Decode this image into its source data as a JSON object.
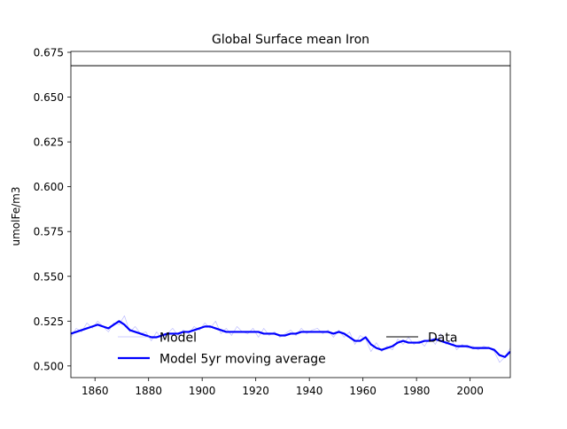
{
  "chart_data": {
    "type": "line",
    "title": "Global Surface mean Iron",
    "xlabel": "",
    "ylabel": "umolFe/m3",
    "xlim": [
      1851,
      2015
    ],
    "ylim": [
      0.4935,
      0.6755
    ],
    "xticks": [
      1860,
      1880,
      1900,
      1920,
      1940,
      1960,
      1980,
      2000
    ],
    "yticks": [
      0.5,
      0.525,
      0.55,
      0.575,
      0.6,
      0.625,
      0.65,
      0.675
    ],
    "ytick_labels": [
      "0.500",
      "0.525",
      "0.550",
      "0.575",
      "0.600",
      "0.625",
      "0.650",
      "0.675"
    ],
    "grid": false,
    "legend": [
      {
        "label": "Model",
        "placement": "lower-left",
        "color": "#9999ff"
      },
      {
        "label": "Model 5yr moving average",
        "placement": "lower-left",
        "color": "#0000ff"
      },
      {
        "label": "Data",
        "placement": "lower-right",
        "color": "#000000"
      }
    ],
    "series": [
      {
        "name": "Model",
        "color": "#9999ff",
        "x": [
          1851,
          1853,
          1855,
          1857,
          1859,
          1861,
          1863,
          1865,
          1867,
          1869,
          1871,
          1873,
          1875,
          1877,
          1879,
          1881,
          1883,
          1885,
          1887,
          1889,
          1891,
          1893,
          1895,
          1897,
          1899,
          1901,
          1903,
          1905,
          1907,
          1909,
          1911,
          1913,
          1915,
          1917,
          1919,
          1921,
          1923,
          1925,
          1927,
          1929,
          1931,
          1933,
          1935,
          1937,
          1939,
          1941,
          1943,
          1945,
          1947,
          1949,
          1951,
          1953,
          1955,
          1957,
          1959,
          1961,
          1963,
          1965,
          1967,
          1969,
          1971,
          1973,
          1975,
          1977,
          1979,
          1981,
          1983,
          1985,
          1987,
          1989,
          1991,
          1993,
          1995,
          1997,
          1999,
          2001,
          2003,
          2005,
          2007,
          2009,
          2011,
          2013,
          2015
        ],
        "values": [
          0.516,
          0.521,
          0.519,
          0.524,
          0.521,
          0.525,
          0.522,
          0.519,
          0.524,
          0.523,
          0.528,
          0.519,
          0.522,
          0.518,
          0.519,
          0.514,
          0.519,
          0.515,
          0.518,
          0.521,
          0.517,
          0.52,
          0.518,
          0.522,
          0.52,
          0.524,
          0.521,
          0.525,
          0.518,
          0.521,
          0.517,
          0.522,
          0.519,
          0.518,
          0.521,
          0.516,
          0.521,
          0.517,
          0.519,
          0.516,
          0.518,
          0.52,
          0.517,
          0.521,
          0.518,
          0.52,
          0.521,
          0.518,
          0.52,
          0.516,
          0.52,
          0.516,
          0.519,
          0.512,
          0.517,
          0.515,
          0.508,
          0.513,
          0.508,
          0.511,
          0.509,
          0.515,
          0.512,
          0.516,
          0.512,
          0.514,
          0.511,
          0.516,
          0.512,
          0.518,
          0.512,
          0.515,
          0.509,
          0.512,
          0.51,
          0.511,
          0.509,
          0.511,
          0.51,
          0.508,
          0.502,
          0.505,
          0.51
        ]
      },
      {
        "name": "Model 5yr moving average",
        "color": "#0000ff",
        "x": [
          1851,
          1853,
          1855,
          1857,
          1859,
          1861,
          1863,
          1865,
          1867,
          1869,
          1871,
          1873,
          1875,
          1877,
          1879,
          1881,
          1883,
          1885,
          1887,
          1889,
          1891,
          1893,
          1895,
          1897,
          1899,
          1901,
          1903,
          1905,
          1907,
          1909,
          1911,
          1913,
          1915,
          1917,
          1919,
          1921,
          1923,
          1925,
          1927,
          1929,
          1931,
          1933,
          1935,
          1937,
          1939,
          1941,
          1943,
          1945,
          1947,
          1949,
          1951,
          1953,
          1955,
          1957,
          1959,
          1961,
          1963,
          1965,
          1967,
          1969,
          1971,
          1973,
          1975,
          1977,
          1979,
          1981,
          1983,
          1985,
          1987,
          1989,
          1991,
          1993,
          1995,
          1997,
          1999,
          2001,
          2003,
          2005,
          2007,
          2009,
          2011,
          2013,
          2015
        ],
        "values": [
          0.518,
          0.519,
          0.52,
          0.521,
          0.522,
          0.523,
          0.522,
          0.521,
          0.523,
          0.525,
          0.523,
          0.52,
          0.519,
          0.518,
          0.517,
          0.516,
          0.516,
          0.517,
          0.518,
          0.518,
          0.518,
          0.519,
          0.519,
          0.52,
          0.521,
          0.522,
          0.522,
          0.521,
          0.52,
          0.519,
          0.519,
          0.519,
          0.519,
          0.519,
          0.519,
          0.519,
          0.518,
          0.518,
          0.518,
          0.517,
          0.517,
          0.518,
          0.518,
          0.519,
          0.519,
          0.519,
          0.519,
          0.519,
          0.519,
          0.518,
          0.519,
          0.518,
          0.516,
          0.514,
          0.514,
          0.516,
          0.512,
          0.51,
          0.509,
          0.51,
          0.511,
          0.513,
          0.514,
          0.513,
          0.513,
          0.513,
          0.514,
          0.514,
          0.515,
          0.514,
          0.513,
          0.512,
          0.511,
          0.511,
          0.511,
          0.51,
          0.51,
          0.51,
          0.51,
          0.509,
          0.506,
          0.505,
          0.508
        ]
      },
      {
        "name": "Data",
        "color": "#000000",
        "x": [
          1851,
          2015
        ],
        "values": [
          0.6675,
          0.6675
        ]
      }
    ]
  }
}
